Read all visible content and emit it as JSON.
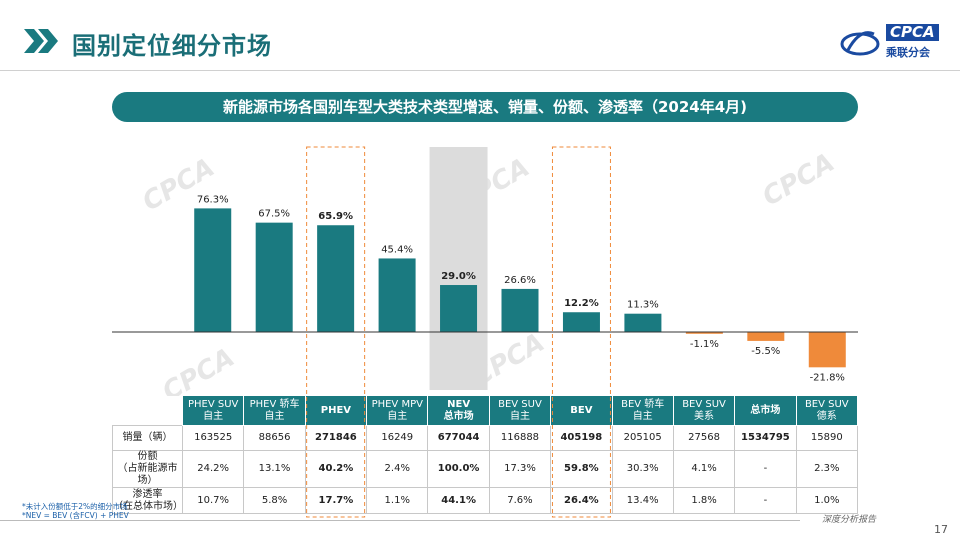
{
  "header": {
    "title": "国别定位细分市场",
    "logo_text": "CPCA",
    "logo_sub": "乘联分会"
  },
  "banner": "新能源市场各国别车型大类技术类型增速、销量、份额、渗透率（2024年4月)",
  "colors": {
    "teal": "#1a7a80",
    "orange": "#ef8a3a",
    "highlight_gray": "#dcdcdc",
    "dash_orange": "#ef8a3a"
  },
  "chart_data": {
    "type": "bar",
    "categories": [
      "PHEV SUV 自主",
      "PHEV 轿车 自主",
      "PHEV",
      "PHEV MPV 自主",
      "NEV 总市场",
      "BEV SUV 自主",
      "BEV",
      "BEV 轿车 自主",
      "BEV SUV 美系",
      "总市场",
      "BEV SUV 德系"
    ],
    "values": [
      76.3,
      67.5,
      65.9,
      45.4,
      29.0,
      26.6,
      12.2,
      11.3,
      -1.1,
      -5.5,
      -21.8
    ],
    "labels": [
      "76.3%",
      "67.5%",
      "65.9%",
      "45.4%",
      "29.0%",
      "26.6%",
      "12.2%",
      "11.3%",
      "-1.1%",
      "-5.5%",
      "-21.8%"
    ],
    "bold_labels": [
      2,
      4,
      6
    ],
    "highlight_dashed": [
      2,
      6
    ],
    "highlight_gray": [
      4
    ],
    "ylim": [
      -25,
      85
    ]
  },
  "table": {
    "headers": [
      [
        "PHEV SUV",
        "自主"
      ],
      [
        "PHEV 轿车",
        "自主"
      ],
      [
        "PHEV",
        ""
      ],
      [
        "PHEV MPV",
        "自主"
      ],
      [
        "NEV",
        "总市场"
      ],
      [
        "BEV SUV",
        "自主"
      ],
      [
        "BEV",
        ""
      ],
      [
        "BEV 轿车",
        "自主"
      ],
      [
        "BEV SUV",
        "美系"
      ],
      [
        "总市场",
        ""
      ],
      [
        "BEV SUV",
        "德系"
      ]
    ],
    "rows": [
      {
        "label": [
          "销量（辆）",
          ""
        ],
        "values": [
          "163525",
          "88656",
          "271846",
          "16249",
          "677044",
          "116888",
          "405198",
          "205105",
          "27568",
          "1534795",
          "15890"
        ]
      },
      {
        "label": [
          "份额",
          "（占新能源市场）"
        ],
        "values": [
          "24.2%",
          "13.1%",
          "40.2%",
          "2.4%",
          "100.0%",
          "17.3%",
          "59.8%",
          "30.3%",
          "4.1%",
          "-",
          "2.3%"
        ]
      },
      {
        "label": [
          "渗透率",
          "（在总体市场）"
        ],
        "values": [
          "10.7%",
          "5.8%",
          "17.7%",
          "1.1%",
          "44.1%",
          "7.6%",
          "26.4%",
          "13.4%",
          "1.8%",
          "-",
          "1.0%"
        ]
      }
    ]
  },
  "footnotes": [
    "*未计入份额低于2%的细分市场",
    "*NEV = BEV (含FCV) + PHEV"
  ],
  "bottom_tag": "深度分析报告",
  "page_number": "17"
}
